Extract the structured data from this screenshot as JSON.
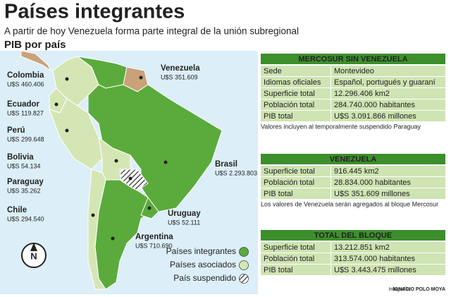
{
  "header": {
    "title": "Países integrantes",
    "subtitle": "A partir de hoy Venezuela forma parte integral de la unión subregional"
  },
  "map": {
    "title": "PIB por país",
    "countries": [
      {
        "name": "Venezuela",
        "pib": "U$S 351.609"
      },
      {
        "name": "Colombia",
        "pib": "U$S 460.406"
      },
      {
        "name": "Ecuador",
        "pib": "U$S 119.827"
      },
      {
        "name": "Perú",
        "pib": "U$S 299.648"
      },
      {
        "name": "Bolivia",
        "pib": "U$S 54.134"
      },
      {
        "name": "Paraguay",
        "pib": "U$S 35.262"
      },
      {
        "name": "Chile",
        "pib": "U$S 294.540"
      },
      {
        "name": "Brasil",
        "pib": "U$S 2.293.803"
      },
      {
        "name": "Uruguay",
        "pib": "U$S 52.111"
      },
      {
        "name": "Argentina",
        "pib": "U$S 710.690"
      }
    ],
    "legend": [
      "Países integrantes",
      "Países asociados",
      "País suspendido"
    ],
    "compass": "N"
  },
  "tables": [
    {
      "title": "MERCOSUR SIN VENEZUELA",
      "rows": [
        [
          "Sede",
          "Montevideo"
        ],
        [
          "Idiomas oficiales",
          "Español, portugués y guaraní"
        ],
        [
          "Superficie total",
          "12.296.406 km2"
        ],
        [
          "Población total",
          "284.740.000 habitantes"
        ],
        [
          "PIB total",
          "U$S 3.091.866 millones"
        ]
      ],
      "note": "Valores incluyen al temporalmente suspendido Paraguay"
    },
    {
      "title": "VENEZUELA",
      "rows": [
        [
          "Superficie total",
          "916.445 km2"
        ],
        [
          "Población total",
          "28.834.000 habitantes"
        ],
        [
          "PIB total",
          "U$S 351.609 millones"
        ]
      ],
      "note": "Los valores de Venezuela serán agregados al bloque Mercosur"
    },
    {
      "title": "TOTAL DEL BLOQUE",
      "rows": [
        [
          "Superficie total",
          "13.212.851 km2"
        ],
        [
          "Población total",
          "313.574.000 habitantes"
        ],
        [
          "PIB total",
          "U$S 3.443.475 millones"
        ]
      ]
    }
  ],
  "credit": {
    "label": "Infografía:",
    "name": "IGNACIO POLO MOYA"
  }
}
